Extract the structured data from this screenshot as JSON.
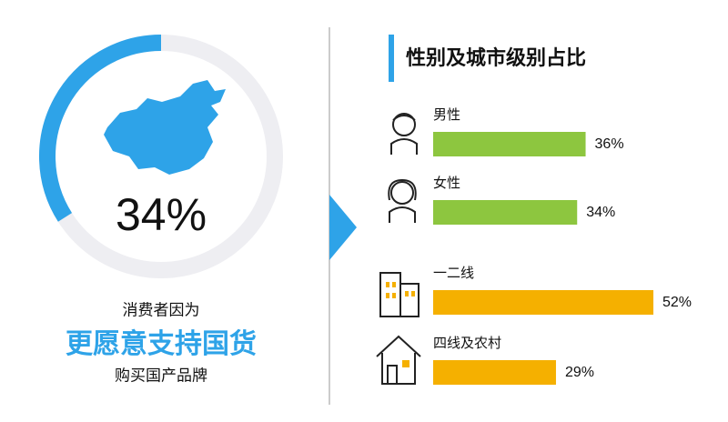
{
  "chart_data": [
    {
      "type": "donut",
      "values": [
        34
      ],
      "value_labels": [
        "34%"
      ],
      "color": "#2ea3e8",
      "track_color": "#eeeef2",
      "annotations": [
        "消费者因为",
        "更愿意支持国货",
        "购买国产品牌"
      ]
    },
    {
      "type": "bar",
      "orientation": "horizontal",
      "title": "性别及城市级别占比",
      "categories": [
        "男性",
        "女性",
        "一二线",
        "四线及农村"
      ],
      "values": [
        36,
        34,
        52,
        29
      ],
      "value_labels": [
        "36%",
        "34%",
        "52%",
        "29%"
      ],
      "colors": [
        "#8dc63f",
        "#8dc63f",
        "#f5b000",
        "#f5b000"
      ]
    }
  ]
}
